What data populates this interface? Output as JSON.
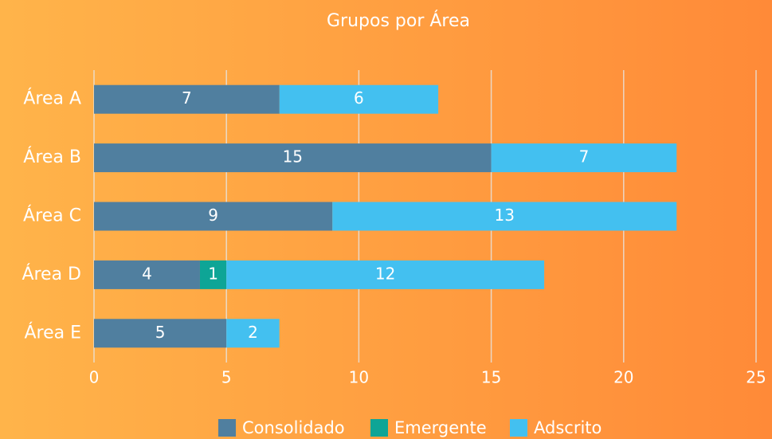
{
  "chart_data": {
    "type": "stacked-bar-horizontal",
    "title": "Grupos por Área",
    "categories": [
      "Área A",
      "Área B",
      "Área C",
      "Área D",
      "Área E"
    ],
    "series": [
      {
        "name": "Consolidado",
        "color": "#507f9f",
        "values": [
          7,
          15,
          9,
          4,
          5
        ]
      },
      {
        "name": "Emergente",
        "color": "#0ea596",
        "values": [
          0,
          0,
          0,
          1,
          0
        ]
      },
      {
        "name": "Adscrito",
        "color": "#43c0f0",
        "values": [
          6,
          7,
          13,
          12,
          2
        ]
      }
    ],
    "xlim": [
      0,
      25
    ],
    "xticks": [
      0,
      5,
      10,
      15,
      20,
      25
    ],
    "grid": true,
    "legend": "bottom"
  }
}
